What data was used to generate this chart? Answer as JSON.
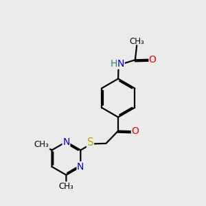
{
  "bg_color": "#ebebeb",
  "bond_color": "#000000",
  "N_color": "#0000cc",
  "O_color": "#dd0000",
  "S_color": "#bbaa00",
  "H_color": "#2a8080",
  "line_width": 1.6,
  "font_size": 10,
  "small_font_size": 8.5,
  "xlim": [
    0,
    10
  ],
  "ylim": [
    0,
    10
  ]
}
